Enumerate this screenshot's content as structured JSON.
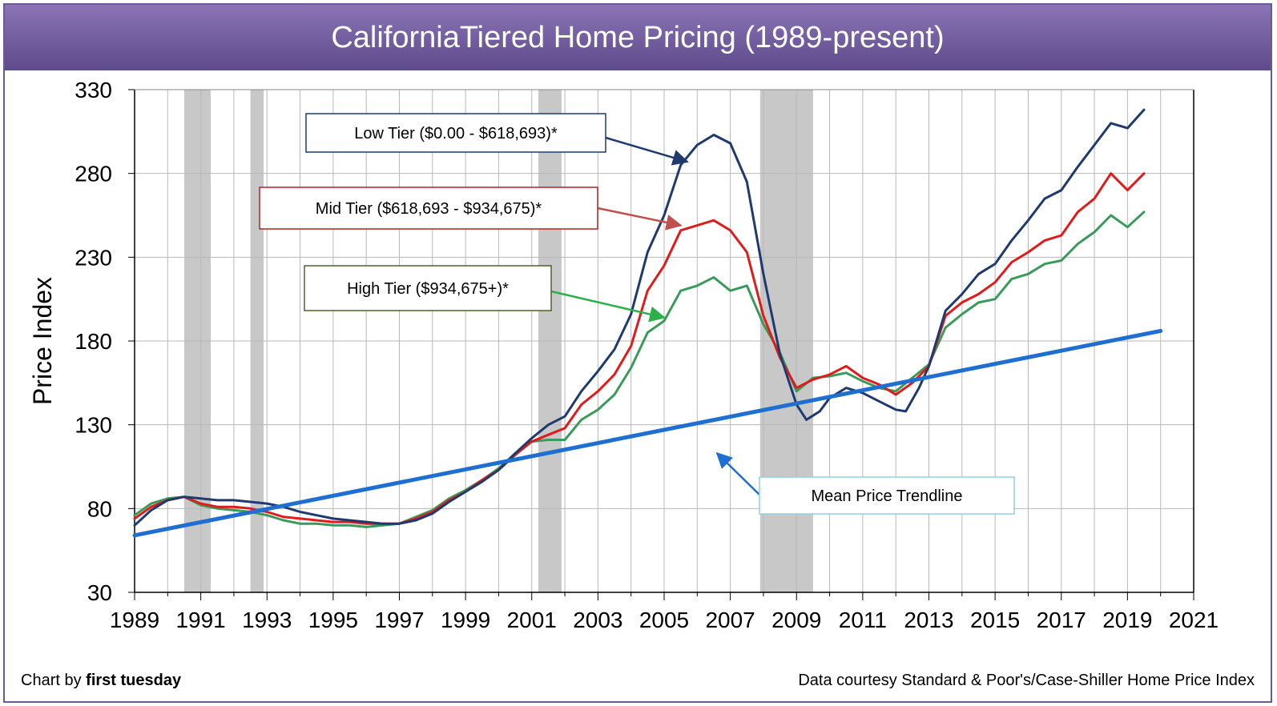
{
  "chart_data": {
    "type": "line",
    "title": "CaliforniaTiered Home Pricing (1989-present)",
    "ylabel": "Price Index",
    "xlabel": "",
    "xlim": [
      1989,
      2021
    ],
    "ylim": [
      30,
      330
    ],
    "x_ticks": [
      "1989",
      "1991",
      "1993",
      "1995",
      "1997",
      "1999",
      "2001",
      "2003",
      "2005",
      "2007",
      "2009",
      "2011",
      "2013",
      "2015",
      "2017",
      "2019",
      "2021"
    ],
    "y_ticks": [
      "30",
      "80",
      "130",
      "180",
      "230",
      "280",
      "330"
    ],
    "grid": true,
    "recessions": [
      [
        1990.5,
        1991.3
      ],
      [
        1992.5,
        1992.9
      ],
      [
        2001.2,
        2001.9
      ],
      [
        2007.9,
        2009.5
      ]
    ],
    "series": [
      {
        "name": "Low Tier ($0.00 - $618,693)*",
        "color": "#1f3a6e",
        "points": [
          [
            1989,
            70
          ],
          [
            1989.5,
            79
          ],
          [
            1990,
            85
          ],
          [
            1990.5,
            87
          ],
          [
            1991,
            86
          ],
          [
            1991.5,
            85
          ],
          [
            1992,
            85
          ],
          [
            1992.5,
            84
          ],
          [
            1993,
            83
          ],
          [
            1993.5,
            81
          ],
          [
            1994,
            78
          ],
          [
            1994.5,
            76
          ],
          [
            1995,
            74
          ],
          [
            1995.5,
            73
          ],
          [
            1996,
            72
          ],
          [
            1996.5,
            71
          ],
          [
            1997,
            71
          ],
          [
            1997.5,
            73
          ],
          [
            1998,
            77
          ],
          [
            1998.5,
            84
          ],
          [
            1999,
            90
          ],
          [
            1999.5,
            96
          ],
          [
            2000,
            103
          ],
          [
            2000.5,
            113
          ],
          [
            2001,
            122
          ],
          [
            2001.5,
            130
          ],
          [
            2002,
            135
          ],
          [
            2002.5,
            150
          ],
          [
            2003,
            162
          ],
          [
            2003.5,
            175
          ],
          [
            2004,
            196
          ],
          [
            2004.5,
            233
          ],
          [
            2005,
            255
          ],
          [
            2005.5,
            285
          ],
          [
            2006,
            297
          ],
          [
            2006.5,
            303
          ],
          [
            2007,
            298
          ],
          [
            2007.5,
            275
          ],
          [
            2008,
            220
          ],
          [
            2008.5,
            172
          ],
          [
            2009,
            142
          ],
          [
            2009.3,
            133
          ],
          [
            2009.7,
            138
          ],
          [
            2010,
            146
          ],
          [
            2010.5,
            152
          ],
          [
            2011,
            149
          ],
          [
            2011.5,
            144
          ],
          [
            2012,
            139
          ],
          [
            2012.3,
            138
          ],
          [
            2012.7,
            152
          ],
          [
            2013,
            165
          ],
          [
            2013.5,
            198
          ],
          [
            2014,
            208
          ],
          [
            2014.5,
            220
          ],
          [
            2015,
            226
          ],
          [
            2015.5,
            240
          ],
          [
            2016,
            252
          ],
          [
            2016.5,
            265
          ],
          [
            2017,
            270
          ],
          [
            2017.5,
            284
          ],
          [
            2018,
            297
          ],
          [
            2018.5,
            310
          ],
          [
            2019,
            307
          ],
          [
            2019.5,
            318
          ]
        ]
      },
      {
        "name": "Mid Tier ($618,693 - $934,675)*",
        "color": "#e01b1b",
        "points": [
          [
            1989,
            74
          ],
          [
            1989.5,
            81
          ],
          [
            1990,
            85
          ],
          [
            1990.5,
            87
          ],
          [
            1991,
            83
          ],
          [
            1991.5,
            81
          ],
          [
            1992,
            81
          ],
          [
            1992.5,
            80
          ],
          [
            1993,
            78
          ],
          [
            1993.5,
            75
          ],
          [
            1994,
            74
          ],
          [
            1994.5,
            73
          ],
          [
            1995,
            72
          ],
          [
            1995.5,
            72
          ],
          [
            1996,
            71
          ],
          [
            1996.5,
            71
          ],
          [
            1997,
            71
          ],
          [
            1997.5,
            74
          ],
          [
            1998,
            78
          ],
          [
            1998.5,
            85
          ],
          [
            1999,
            90
          ],
          [
            1999.5,
            97
          ],
          [
            2000,
            103
          ],
          [
            2000.5,
            112
          ],
          [
            2001,
            120
          ],
          [
            2001.5,
            124
          ],
          [
            2002,
            128
          ],
          [
            2002.5,
            142
          ],
          [
            2003,
            150
          ],
          [
            2003.5,
            160
          ],
          [
            2004,
            177
          ],
          [
            2004.5,
            210
          ],
          [
            2005,
            225
          ],
          [
            2005.5,
            246
          ],
          [
            2006,
            249
          ],
          [
            2006.5,
            252
          ],
          [
            2007,
            246
          ],
          [
            2007.5,
            233
          ],
          [
            2008,
            195
          ],
          [
            2008.5,
            170
          ],
          [
            2009,
            152
          ],
          [
            2009.5,
            157
          ],
          [
            2010,
            160
          ],
          [
            2010.5,
            165
          ],
          [
            2011,
            158
          ],
          [
            2011.5,
            154
          ],
          [
            2012,
            148
          ],
          [
            2012.5,
            155
          ],
          [
            2013,
            165
          ],
          [
            2013.5,
            195
          ],
          [
            2014,
            203
          ],
          [
            2014.5,
            208
          ],
          [
            2015,
            215
          ],
          [
            2015.5,
            227
          ],
          [
            2016,
            233
          ],
          [
            2016.5,
            240
          ],
          [
            2017,
            243
          ],
          [
            2017.5,
            257
          ],
          [
            2018,
            265
          ],
          [
            2018.5,
            280
          ],
          [
            2019,
            270
          ],
          [
            2019.5,
            280
          ]
        ]
      },
      {
        "name": "High Tier ($934,675+)*",
        "color": "#3a9a5a",
        "points": [
          [
            1989,
            76
          ],
          [
            1989.5,
            83
          ],
          [
            1990,
            86
          ],
          [
            1990.5,
            87
          ],
          [
            1991,
            82
          ],
          [
            1991.5,
            80
          ],
          [
            1992,
            79
          ],
          [
            1992.5,
            78
          ],
          [
            1993,
            76
          ],
          [
            1993.5,
            73
          ],
          [
            1994,
            71
          ],
          [
            1994.5,
            71
          ],
          [
            1995,
            70
          ],
          [
            1995.5,
            70
          ],
          [
            1996,
            69
          ],
          [
            1996.5,
            70
          ],
          [
            1997,
            71
          ],
          [
            1997.5,
            75
          ],
          [
            1998,
            79
          ],
          [
            1998.5,
            86
          ],
          [
            1999,
            91
          ],
          [
            1999.5,
            97
          ],
          [
            2000,
            104
          ],
          [
            2000.5,
            113
          ],
          [
            2001,
            120
          ],
          [
            2001.5,
            121
          ],
          [
            2002,
            121
          ],
          [
            2002.5,
            133
          ],
          [
            2003,
            139
          ],
          [
            2003.5,
            148
          ],
          [
            2004,
            164
          ],
          [
            2004.5,
            185
          ],
          [
            2005,
            192
          ],
          [
            2005.5,
            210
          ],
          [
            2006,
            213
          ],
          [
            2006.5,
            218
          ],
          [
            2007,
            210
          ],
          [
            2007.5,
            213
          ],
          [
            2008,
            190
          ],
          [
            2008.5,
            173
          ],
          [
            2009,
            150
          ],
          [
            2009.5,
            158
          ],
          [
            2010,
            159
          ],
          [
            2010.5,
            161
          ],
          [
            2011,
            156
          ],
          [
            2011.5,
            152
          ],
          [
            2012,
            150
          ],
          [
            2012.5,
            158
          ],
          [
            2013,
            166
          ],
          [
            2013.5,
            188
          ],
          [
            2014,
            196
          ],
          [
            2014.5,
            203
          ],
          [
            2015,
            205
          ],
          [
            2015.5,
            217
          ],
          [
            2016,
            220
          ],
          [
            2016.5,
            226
          ],
          [
            2017,
            228
          ],
          [
            2017.5,
            238
          ],
          [
            2018,
            245
          ],
          [
            2018.5,
            255
          ],
          [
            2019,
            248
          ],
          [
            2019.5,
            257
          ]
        ]
      },
      {
        "name": "Mean Price Trendline",
        "color": "#1f6fd1",
        "points": [
          [
            1989,
            64
          ],
          [
            2020,
            186
          ]
        ]
      }
    ],
    "annotations": [
      {
        "text": "Low Tier ($0.00 - $618,693)*",
        "border": "#1f3a6e",
        "arrow_color": "#1f3a6e",
        "arrow_to": [
          2005.7,
          287
        ]
      },
      {
        "text": "Mid Tier ($618,693 - $934,675)*",
        "border": "#b22222",
        "arrow_color": "#c0504d",
        "arrow_to": [
          2005.5,
          249
        ]
      },
      {
        "text": "High Tier ($934,675+)*",
        "border": "#4f6228",
        "arrow_color": "#2bb04a",
        "arrow_to": [
          2005,
          194
        ]
      },
      {
        "text": "Mean Price Trendline",
        "border": "#8fd0e0",
        "arrow_color": "#1f6fd1",
        "arrow_to": [
          2006.6,
          113
        ]
      }
    ]
  },
  "footer": {
    "credit_prefix": "Chart by ",
    "credit_brand": "first tuesday",
    "source": "Data courtesy Standard & Poor's/Case-Shiller Home Price Index"
  }
}
